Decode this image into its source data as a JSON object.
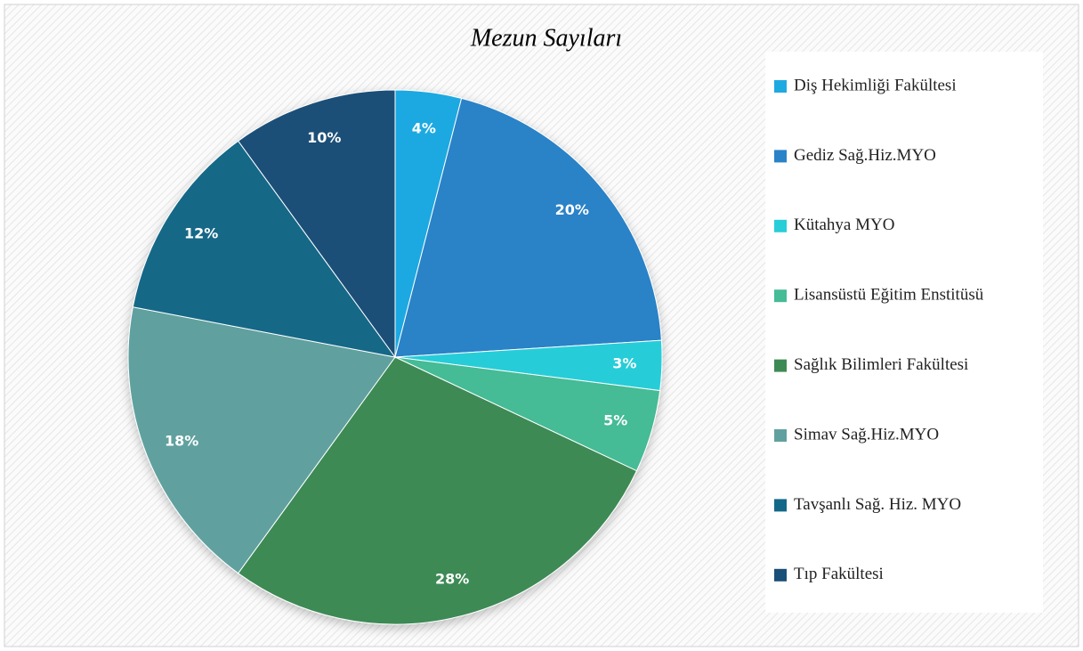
{
  "chart_data": {
    "type": "pie",
    "title": "Mezun Sayıları",
    "categories": [
      "Diş Hekimliği Fakültesi",
      "Gediz Sağ.Hiz.MYO",
      "Kütahya MYO",
      "Lisansüstü Eğitim Enstitüsü",
      "Sağlık Bilimleri Fakültesi",
      "Simav Sağ.Hiz.MYO",
      "Tavşanlı Sağ. Hiz. MYO",
      "Tıp Fakültesi"
    ],
    "values": [
      4,
      20,
      3,
      5,
      28,
      18,
      12,
      10
    ],
    "value_labels": [
      "4%",
      "20%",
      "3%",
      "5%",
      "28%",
      "18%",
      "12%",
      "10%"
    ],
    "colors": [
      "#1fa9e1",
      "#2a82c7",
      "#28cdd8",
      "#45bb96",
      "#3e8a55",
      "#60a19f",
      "#146887",
      "#1a4f78"
    ],
    "legend": "right"
  }
}
